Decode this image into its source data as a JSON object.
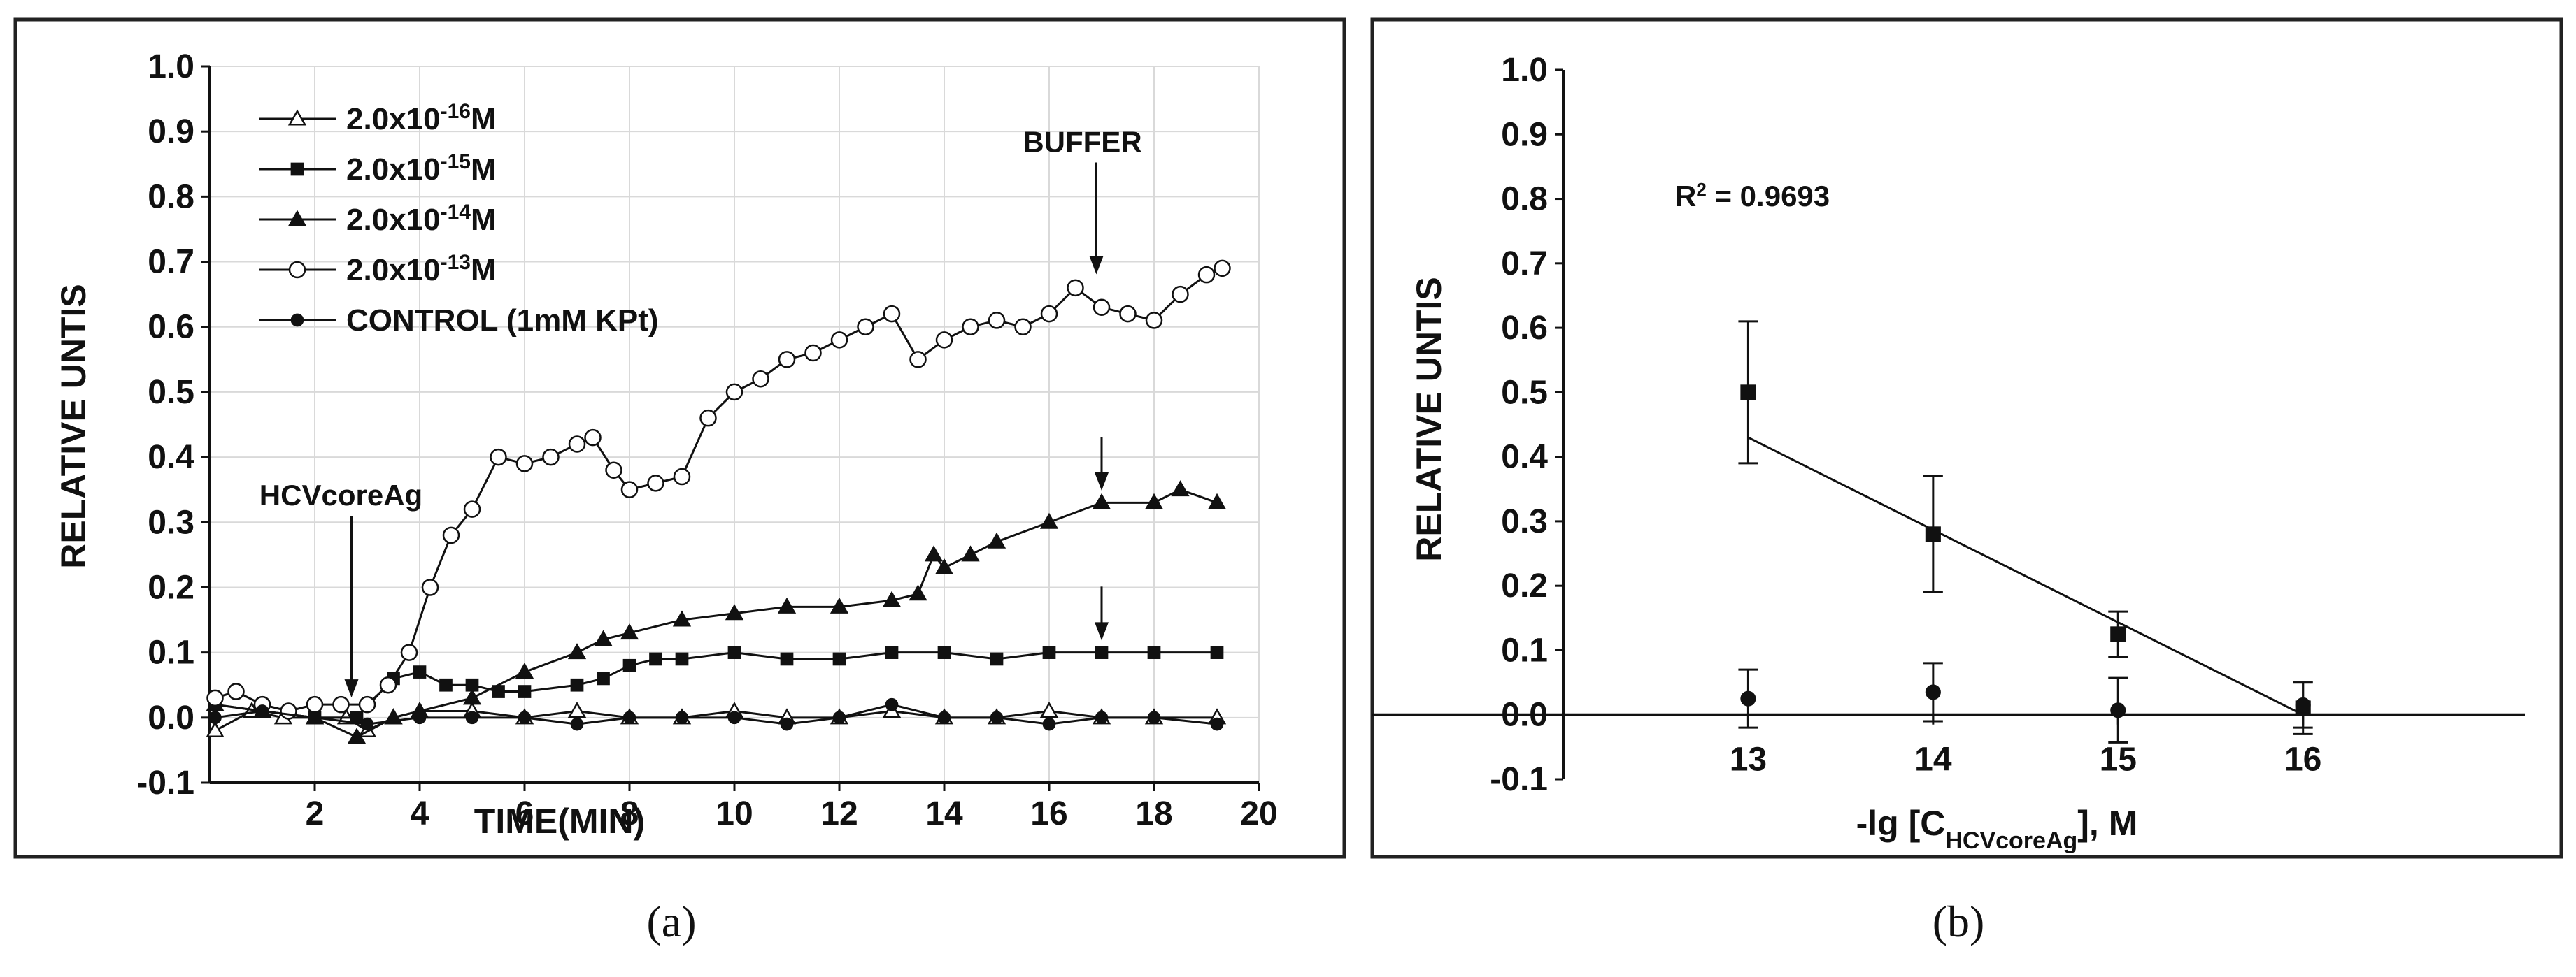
{
  "chart_data": [
    {
      "type": "line",
      "caption": "(a)",
      "xlabel": "TIME(MIN)",
      "ylabel": "RELATIVE UNTIS",
      "xlim": [
        0,
        20
      ],
      "ylim": [
        -0.1,
        1.0
      ],
      "x_ticks": [
        "2",
        "4",
        "6",
        "8",
        "10",
        "12",
        "14",
        "16",
        "18",
        "20"
      ],
      "y_ticks": [
        "-0.1",
        "0.0",
        "0.1",
        "0.2",
        "0.3",
        "0.4",
        "0.5",
        "0.6",
        "0.7",
        "0.8",
        "0.9",
        "1.0"
      ],
      "grid": true,
      "legend_position": "top-left",
      "series": [
        {
          "name": "2.0x10<sup>-16</sup>M",
          "marker": "open-triangle",
          "x": [
            0.1,
            0.8,
            1.4,
            2.0,
            2.6,
            3.0,
            3.5,
            4.0,
            5.0,
            6.0,
            7.0,
            8.0,
            9.0,
            10.0,
            11.0,
            12.0,
            13.0,
            14.0,
            15.0,
            16.0,
            17.0,
            18.0,
            19.2
          ],
          "y": [
            -0.02,
            0.01,
            0.0,
            0.0,
            0.0,
            -0.02,
            0.0,
            0.01,
            0.01,
            0.0,
            0.01,
            0.0,
            0.0,
            0.01,
            0.0,
            0.0,
            0.01,
            0.0,
            0.0,
            0.01,
            0.0,
            0.0,
            0.0
          ]
        },
        {
          "name": "2.0x10<sup>-15</sup>M",
          "marker": "filled-square",
          "x": [
            0.1,
            1.0,
            2.0,
            2.8,
            3.5,
            4.0,
            4.5,
            5.0,
            5.5,
            6.0,
            7.0,
            7.5,
            8.0,
            8.5,
            9.0,
            10.0,
            11.0,
            12.0,
            13.0,
            14.0,
            15.0,
            16.0,
            17.0,
            18.0,
            19.2
          ],
          "y": [
            0.02,
            0.01,
            0.0,
            0.0,
            0.06,
            0.07,
            0.05,
            0.05,
            0.04,
            0.04,
            0.05,
            0.06,
            0.08,
            0.09,
            0.09,
            0.1,
            0.09,
            0.09,
            0.1,
            0.1,
            0.09,
            0.1,
            0.1,
            0.1,
            0.1
          ]
        },
        {
          "name": "2.0x10<sup>-14</sup>M",
          "marker": "filled-triangle",
          "x": [
            0.1,
            1.0,
            2.0,
            2.8,
            3.5,
            4.0,
            5.0,
            6.0,
            7.0,
            7.5,
            8.0,
            9.0,
            10.0,
            11.0,
            12.0,
            13.0,
            13.5,
            13.8,
            14.0,
            14.5,
            15.0,
            16.0,
            17.0,
            18.0,
            18.5,
            19.2
          ],
          "y": [
            0.02,
            0.01,
            0.0,
            -0.03,
            0.0,
            0.01,
            0.03,
            0.07,
            0.1,
            0.12,
            0.13,
            0.15,
            0.16,
            0.17,
            0.17,
            0.18,
            0.19,
            0.25,
            0.23,
            0.25,
            0.27,
            0.3,
            0.33,
            0.33,
            0.35,
            0.33
          ]
        },
        {
          "name": "2.0x10<sup>-13</sup>M",
          "marker": "open-circle",
          "x": [
            0.1,
            0.5,
            1.0,
            1.5,
            2.0,
            2.5,
            3.0,
            3.4,
            3.8,
            4.2,
            4.6,
            5.0,
            5.5,
            6.0,
            6.5,
            7.0,
            7.3,
            7.7,
            8.0,
            8.5,
            9.0,
            9.5,
            10.0,
            10.5,
            11.0,
            11.5,
            12.0,
            12.5,
            13.0,
            13.5,
            14.0,
            14.5,
            15.0,
            15.5,
            16.0,
            16.5,
            17.0,
            17.5,
            18.0,
            18.5,
            19.0,
            19.3
          ],
          "y": [
            0.03,
            0.04,
            0.02,
            0.01,
            0.02,
            0.02,
            0.02,
            0.05,
            0.1,
            0.2,
            0.28,
            0.32,
            0.4,
            0.39,
            0.4,
            0.42,
            0.43,
            0.38,
            0.35,
            0.36,
            0.37,
            0.46,
            0.5,
            0.52,
            0.55,
            0.56,
            0.58,
            0.6,
            0.62,
            0.55,
            0.58,
            0.6,
            0.61,
            0.6,
            0.62,
            0.66,
            0.63,
            0.62,
            0.61,
            0.65,
            0.68,
            0.69
          ]
        },
        {
          "name": "CONTROL (1mM KPt)",
          "marker": "filled-circle",
          "x": [
            0.1,
            1.0,
            2.0,
            3.0,
            4.0,
            5.0,
            6.0,
            7.0,
            8.0,
            9.0,
            10.0,
            11.0,
            12.0,
            13.0,
            14.0,
            15.0,
            16.0,
            17.0,
            18.0,
            19.2
          ],
          "y": [
            0.0,
            0.01,
            0.0,
            -0.01,
            0.0,
            0.0,
            0.0,
            -0.01,
            0.0,
            0.0,
            0.0,
            -0.01,
            0.0,
            0.02,
            0.0,
            0.0,
            -0.01,
            0.0,
            0.0,
            -0.01
          ]
        }
      ],
      "annotations": [
        {
          "text": "HCVcoreAg",
          "x": 2.7,
          "y": 0.02
        },
        {
          "text": "BUFFER",
          "x": 16.9,
          "y": 0.67
        },
        {
          "text": "",
          "x": 17.0,
          "y": 0.34
        },
        {
          "text": "",
          "x": 17.0,
          "y": 0.11
        }
      ]
    },
    {
      "type": "scatter",
      "caption": "(b)",
      "xlabel_html": "-lg [C<tspan baseline-shift=\"sub\" font-size=\"34\">HCVcoreAg</tspan>], M",
      "ylabel": "RELATIVE UNTIS",
      "xlim": [
        12,
        17.2
      ],
      "ylim": [
        -0.1,
        1.0
      ],
      "x_ticks": [
        "13",
        "14",
        "15",
        "16"
      ],
      "y_ticks": [
        "-0.1",
        "0.0",
        "0.1",
        "0.2",
        "0.3",
        "0.4",
        "0.5",
        "0.6",
        "0.7",
        "0.8",
        "0.9",
        "1.0"
      ],
      "grid": false,
      "r_squared_html": "R<tspan baseline-shift=\"super\" font-size=\"26\">2</tspan> = 0.9693",
      "series": [
        {
          "marker": "filled-square",
          "x": [
            13,
            14,
            15,
            16
          ],
          "y": [
            0.5,
            0.28,
            0.125,
            0.01
          ],
          "err": [
            0.11,
            0.09,
            0.035,
            0.04
          ]
        },
        {
          "marker": "filled-circle",
          "x": [
            13,
            14,
            15,
            16
          ],
          "y": [
            0.025,
            0.035,
            0.007,
            0.015
          ],
          "err": [
            0.045,
            0.045,
            0.05,
            0.035
          ]
        }
      ],
      "fit_line": {
        "x": [
          13,
          16
        ],
        "y": [
          0.43,
          0.0
        ]
      }
    }
  ]
}
